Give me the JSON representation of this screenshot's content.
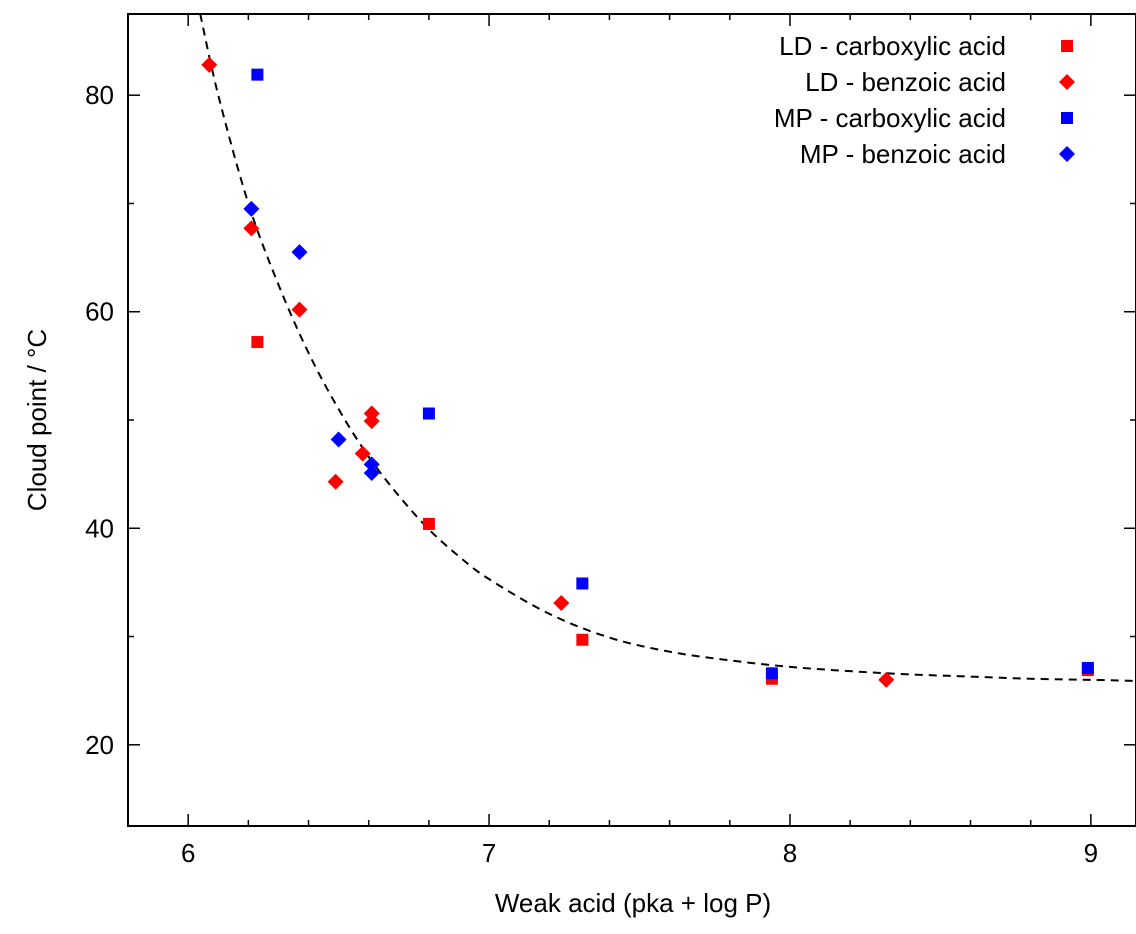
{
  "chart_data": {
    "type": "scatter",
    "title": "",
    "xlabel": "Weak acid (pka + log P)",
    "ylabel": "Cloud point / °C",
    "xlim": [
      5.8,
      9.15
    ],
    "ylim": [
      12.5,
      87.5
    ],
    "x_ticks": [
      6,
      7,
      8,
      9
    ],
    "y_ticks": [
      20,
      40,
      60,
      80
    ],
    "x_minor_step": 0.2,
    "y_minor_step": 10,
    "grid": false,
    "legend_position": "top-right",
    "series": [
      {
        "name": "LD - carboxylic acid",
        "marker": "square",
        "color": "#ff0000",
        "points": [
          {
            "x": 6.23,
            "y": 57.2
          },
          {
            "x": 6.8,
            "y": 40.4
          },
          {
            "x": 7.31,
            "y": 29.7
          },
          {
            "x": 7.94,
            "y": 26.1
          },
          {
            "x": 8.99,
            "y": 26.9
          }
        ]
      },
      {
        "name": "LD - benzoic acid",
        "marker": "diamond",
        "color": "#ff0000",
        "points": [
          {
            "x": 6.07,
            "y": 82.8
          },
          {
            "x": 6.21,
            "y": 67.7
          },
          {
            "x": 6.37,
            "y": 60.2
          },
          {
            "x": 6.49,
            "y": 44.3
          },
          {
            "x": 6.58,
            "y": 46.9
          },
          {
            "x": 6.61,
            "y": 50.6
          },
          {
            "x": 6.61,
            "y": 49.9
          },
          {
            "x": 7.24,
            "y": 33.1
          },
          {
            "x": 8.32,
            "y": 26.0
          }
        ]
      },
      {
        "name": "MP - carboxylic acid",
        "marker": "square",
        "color": "#0000ff",
        "points": [
          {
            "x": 6.23,
            "y": 81.9
          },
          {
            "x": 6.8,
            "y": 50.6
          },
          {
            "x": 7.31,
            "y": 34.9
          },
          {
            "x": 7.94,
            "y": 26.6
          },
          {
            "x": 8.99,
            "y": 27.1
          }
        ]
      },
      {
        "name": "MP - benzoic acid",
        "marker": "diamond",
        "color": "#0000ff",
        "points": [
          {
            "x": 6.21,
            "y": 69.5
          },
          {
            "x": 6.37,
            "y": 65.5
          },
          {
            "x": 6.5,
            "y": 48.2
          },
          {
            "x": 6.61,
            "y": 45.9
          },
          {
            "x": 6.61,
            "y": 45.1
          }
        ]
      }
    ],
    "fit_curve": {
      "style": "dashed",
      "color": "#000000",
      "points": [
        [
          6.04,
          87.5
        ],
        [
          6.1,
          80.0
        ],
        [
          6.2,
          70.0
        ],
        [
          6.3,
          62.5
        ],
        [
          6.4,
          56.2
        ],
        [
          6.5,
          51.0
        ],
        [
          6.6,
          46.6
        ],
        [
          6.7,
          43.0
        ],
        [
          6.8,
          39.9
        ],
        [
          6.9,
          37.4
        ],
        [
          7.0,
          35.3
        ],
        [
          7.2,
          32.1
        ],
        [
          7.4,
          29.9
        ],
        [
          7.6,
          28.6
        ],
        [
          7.8,
          27.8
        ],
        [
          8.0,
          27.2
        ],
        [
          8.2,
          26.8
        ],
        [
          8.4,
          26.5
        ],
        [
          8.6,
          26.3
        ],
        [
          8.8,
          26.1
        ],
        [
          9.0,
          26.0
        ],
        [
          9.15,
          25.9
        ]
      ]
    }
  }
}
